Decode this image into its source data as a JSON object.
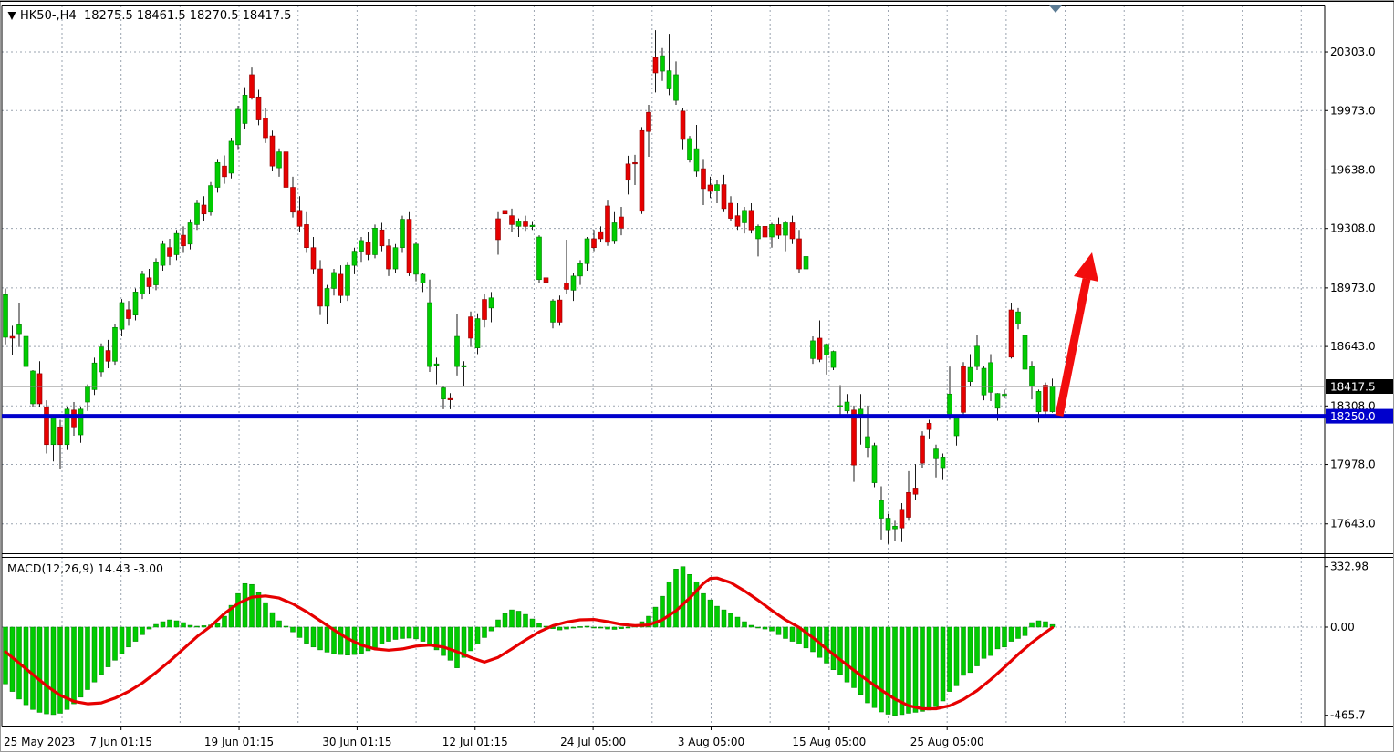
{
  "header": {
    "symbol": "HK50-",
    "timeframe": "H4",
    "text": "HK50-,H4  18275.5 18461.5 18270.5 18417.5",
    "open": "18275.5",
    "high": "18461.5",
    "low": "18270.5",
    "close": "18417.5"
  },
  "colors": {
    "bull": "#00cc00",
    "bull_border": "#007a00",
    "bear": "#e60000",
    "bear_border": "#8a0000",
    "wick": "#1a1a1a",
    "grid": "#9aa3af",
    "blue_level_line": "#0000cc",
    "current_price_line": "#808080",
    "signal_line": "#e60000",
    "arrow": "#f20d0d",
    "separator_marker": "#5b7b94",
    "axis_text": "#000000"
  },
  "price_axis": {
    "labels": [
      "20303.0",
      "19973.0",
      "19638.0",
      "19308.0",
      "18973.0",
      "18643.0",
      "18308.0",
      "17978.0",
      "17643.0"
    ],
    "label_values": [
      20303.0,
      19973.0,
      19638.0,
      19308.0,
      18973.0,
      18643.0,
      18308.0,
      17978.0,
      17643.0
    ],
    "current_price_tag": "18417.5",
    "current_price_value": 18417.5,
    "level_tag": "18250.0",
    "level_value": 18250.0
  },
  "time_axis": {
    "labels": [
      "25 May 2023",
      "7 Jun 01:15",
      "19 Jun 01:15",
      "30 Jun 01:15",
      "12 Jul 01:15",
      "24 Jul 05:00",
      "3 Aug 05:00",
      "15 Aug 05:00",
      "25 Aug 05:00"
    ]
  },
  "macd": {
    "label": "MACD(12,26,9) 14.43 -3.00",
    "params": "12,26,9",
    "value": 14.43,
    "signal_value": -3.0,
    "axis_labels": [
      "332.98",
      "0.00",
      "-465.7"
    ],
    "axis_values": [
      332.98,
      0.0,
      -465.7
    ]
  },
  "annotations": {
    "horizontal_line_price": 18250.0,
    "trend_arrow": "up"
  },
  "chart_data": {
    "type": "candlestick",
    "title": "HK50- H4 candlestick chart with MACD(12,26,9)",
    "ylim": [
      17400,
      20500
    ],
    "grid": true,
    "ohlc": [
      [
        18695,
        18970,
        18655,
        18935
      ],
      [
        18700,
        18760,
        18595,
        18690
      ],
      [
        18715,
        18890,
        18640,
        18765
      ],
      [
        18530,
        18720,
        18460,
        18700
      ],
      [
        18320,
        18510,
        18300,
        18505
      ],
      [
        18490,
        18560,
        18300,
        18320
      ],
      [
        18300,
        18340,
        18040,
        18090
      ],
      [
        18090,
        18250,
        17995,
        18245
      ],
      [
        18190,
        18230,
        17955,
        18090
      ],
      [
        18090,
        18300,
        18060,
        18290
      ],
      [
        18285,
        18330,
        18140,
        18190
      ],
      [
        18145,
        18300,
        18100,
        18290
      ],
      [
        18330,
        18430,
        18280,
        18420
      ],
      [
        18400,
        18580,
        18370,
        18550
      ],
      [
        18500,
        18660,
        18470,
        18640
      ],
      [
        18620,
        18680,
        18520,
        18560
      ],
      [
        18560,
        18770,
        18540,
        18750
      ],
      [
        18740,
        18910,
        18700,
        18890
      ],
      [
        18850,
        18900,
        18760,
        18800
      ],
      [
        18820,
        18970,
        18790,
        18950
      ],
      [
        18940,
        19070,
        18910,
        19050
      ],
      [
        19030,
        19080,
        18940,
        18980
      ],
      [
        18990,
        19140,
        18960,
        19120
      ],
      [
        19100,
        19240,
        19070,
        19220
      ],
      [
        19200,
        19250,
        19100,
        19150
      ],
      [
        19160,
        19300,
        19130,
        19280
      ],
      [
        19270,
        19320,
        19170,
        19210
      ],
      [
        19220,
        19360,
        19190,
        19340
      ],
      [
        19330,
        19470,
        19300,
        19450
      ],
      [
        19440,
        19490,
        19350,
        19390
      ],
      [
        19400,
        19570,
        19380,
        19550
      ],
      [
        19540,
        19700,
        19510,
        19680
      ],
      [
        19660,
        19720,
        19560,
        19600
      ],
      [
        19620,
        19820,
        19590,
        19800
      ],
      [
        19780,
        20000,
        19750,
        19980
      ],
      [
        19900,
        20105,
        19870,
        20060
      ],
      [
        20175,
        20215,
        20035,
        20045
      ],
      [
        20050,
        20090,
        19890,
        19920
      ],
      [
        19930,
        19990,
        19790,
        19820
      ],
      [
        19830,
        19860,
        19630,
        19660
      ],
      [
        19650,
        19760,
        19600,
        19740
      ],
      [
        19740,
        19780,
        19510,
        19540
      ],
      [
        19540,
        19600,
        19370,
        19400
      ],
      [
        19410,
        19490,
        19290,
        19320
      ],
      [
        19330,
        19400,
        19170,
        19200
      ],
      [
        19200,
        19260,
        19050,
        19080
      ],
      [
        19080,
        19130,
        18820,
        18870
      ],
      [
        18870,
        18990,
        18770,
        18970
      ],
      [
        18970,
        19080,
        18930,
        19060
      ],
      [
        19050,
        19100,
        18890,
        18930
      ],
      [
        18930,
        19120,
        18900,
        19100
      ],
      [
        19100,
        19200,
        19050,
        19180
      ],
      [
        19180,
        19260,
        19120,
        19240
      ],
      [
        19230,
        19290,
        19130,
        19160
      ],
      [
        19160,
        19330,
        19140,
        19310
      ],
      [
        19300,
        19340,
        19180,
        19210
      ],
      [
        19210,
        19250,
        19040,
        19080
      ],
      [
        19080,
        19220,
        19060,
        19200
      ],
      [
        19200,
        19380,
        19170,
        19360
      ],
      [
        19360,
        19400,
        19040,
        19060
      ],
      [
        19050,
        19230,
        19010,
        19220
      ],
      [
        19000,
        19060,
        18950,
        19050
      ],
      [
        18530,
        19020,
        18500,
        18890
      ],
      [
        18540,
        18580,
        18430,
        18545
      ],
      [
        18347,
        18420,
        18290,
        18410
      ],
      [
        18350,
        18380,
        18290,
        18345
      ],
      [
        18530,
        18825,
        18480,
        18700
      ],
      [
        18530,
        18560,
        18415,
        18535
      ],
      [
        18810,
        18840,
        18640,
        18690
      ],
      [
        18635,
        18830,
        18600,
        18800
      ],
      [
        18908,
        18940,
        18750,
        18795
      ],
      [
        18860,
        18950,
        18780,
        18917
      ],
      [
        19363,
        19400,
        19160,
        19245
      ],
      [
        19410,
        19440,
        19330,
        19390
      ],
      [
        19380,
        19420,
        19290,
        19330
      ],
      [
        19320,
        19365,
        19260,
        19350
      ],
      [
        19345,
        19380,
        19295,
        19320
      ],
      [
        19322,
        19345,
        19300,
        19326
      ],
      [
        19020,
        19270,
        19000,
        19260
      ],
      [
        19030,
        19060,
        18735,
        19005
      ],
      [
        18780,
        18910,
        18745,
        18900
      ],
      [
        18905,
        18930,
        18760,
        18780
      ],
      [
        19000,
        19245,
        18940,
        18965
      ],
      [
        18960,
        19060,
        18900,
        19040
      ],
      [
        19040,
        19130,
        18990,
        19110
      ],
      [
        19110,
        19260,
        19070,
        19250
      ],
      [
        19250,
        19300,
        19180,
        19200
      ],
      [
        19290,
        19320,
        19230,
        19250
      ],
      [
        19435,
        19470,
        19210,
        19230
      ],
      [
        19240,
        19400,
        19220,
        19340
      ],
      [
        19373,
        19430,
        19270,
        19310
      ],
      [
        19672,
        19718,
        19500,
        19580
      ],
      [
        19680,
        19723,
        19553,
        19675
      ],
      [
        19860,
        19880,
        19390,
        19405
      ],
      [
        19963,
        20005,
        19712,
        19855
      ],
      [
        20272,
        20426,
        20075,
        20185
      ],
      [
        20195,
        20325,
        20140,
        20282
      ],
      [
        20095,
        20405,
        20060,
        20197
      ],
      [
        20030,
        20250,
        20005,
        20175
      ],
      [
        19970,
        19990,
        19750,
        19810
      ],
      [
        19697,
        19830,
        19680,
        19815
      ],
      [
        19630,
        19892,
        19600,
        19758
      ],
      [
        19645,
        19700,
        19440,
        19533
      ],
      [
        19553,
        19600,
        19480,
        19517
      ],
      [
        19520,
        19580,
        19450,
        19555
      ],
      [
        19555,
        19610,
        19400,
        19420
      ],
      [
        19450,
        19490,
        19350,
        19365
      ],
      [
        19380,
        19450,
        19300,
        19320
      ],
      [
        19340,
        19430,
        19280,
        19410
      ],
      [
        19410,
        19450,
        19280,
        19300
      ],
      [
        19250,
        19330,
        19150,
        19320
      ],
      [
        19320,
        19360,
        19240,
        19260
      ],
      [
        19260,
        19340,
        19200,
        19330
      ],
      [
        19330,
        19370,
        19250,
        19270
      ],
      [
        19270,
        19350,
        19180,
        19340
      ],
      [
        19340,
        19380,
        19220,
        19250
      ],
      [
        19250,
        19300,
        19060,
        19080
      ],
      [
        19080,
        19160,
        19040,
        19150
      ],
      [
        18575,
        18700,
        18545,
        18675
      ],
      [
        18690,
        18790,
        18555,
        18570
      ],
      [
        18595,
        18660,
        18485,
        18655
      ],
      [
        18525,
        18620,
        18510,
        18615
      ],
      [
        18305,
        18425,
        18250,
        18310
      ],
      [
        18280,
        18375,
        18265,
        18330
      ],
      [
        18285,
        18310,
        17880,
        17975
      ],
      [
        18260,
        18375,
        18090,
        18290
      ],
      [
        18075,
        18310,
        18020,
        18135
      ],
      [
        17875,
        18100,
        17850,
        18085
      ],
      [
        17675,
        17855,
        17555,
        17775
      ],
      [
        17610,
        17700,
        17530,
        17675
      ],
      [
        17615,
        17660,
        17545,
        17630
      ],
      [
        17725,
        17760,
        17540,
        17620
      ],
      [
        17820,
        17940,
        17660,
        17680
      ],
      [
        17845,
        17980,
        17780,
        17810
      ],
      [
        18140,
        18165,
        17960,
        17985
      ],
      [
        18210,
        18230,
        18120,
        18175
      ],
      [
        18010,
        18090,
        17905,
        18065
      ],
      [
        17960,
        18040,
        17890,
        18020
      ],
      [
        18250,
        18530,
        18230,
        18375
      ],
      [
        18140,
        18260,
        18085,
        18250
      ],
      [
        18530,
        18555,
        18245,
        18272
      ],
      [
        18445,
        18600,
        18420,
        18525
      ],
      [
        18530,
        18705,
        18510,
        18645
      ],
      [
        18370,
        18530,
        18340,
        18520
      ],
      [
        18385,
        18600,
        18335,
        18552
      ],
      [
        18295,
        18380,
        18225,
        18378
      ],
      [
        18372,
        18400,
        18350,
        18374
      ],
      [
        18849,
        18890,
        18575,
        18583
      ],
      [
        18770,
        18860,
        18740,
        18838
      ],
      [
        18515,
        18720,
        18500,
        18705
      ],
      [
        18420,
        18560,
        18345,
        18530
      ],
      [
        18275,
        18400,
        18215,
        18390
      ],
      [
        18425,
        18440,
        18255,
        18278
      ],
      [
        18275.5,
        18461.5,
        18270.5,
        18417.5
      ]
    ],
    "macd_histogram": [
      -300,
      -340,
      -380,
      -410,
      -435,
      -450,
      -458,
      -462,
      -455,
      -435,
      -405,
      -370,
      -330,
      -290,
      -250,
      -210,
      -175,
      -140,
      -105,
      -75,
      -40,
      -10,
      15,
      30,
      40,
      35,
      25,
      10,
      5,
      8,
      12,
      20,
      60,
      120,
      185,
      240,
      235,
      190,
      135,
      80,
      35,
      5,
      -25,
      -55,
      -85,
      -105,
      -120,
      -132,
      -140,
      -145,
      -148,
      -145,
      -138,
      -125,
      -108,
      -90,
      -75,
      -65,
      -60,
      -58,
      -62,
      -75,
      -95,
      -120,
      -150,
      -175,
      -215,
      -160,
      -125,
      -90,
      -55,
      -20,
      40,
      75,
      95,
      88,
      70,
      45,
      20,
      5,
      -8,
      -15,
      -10,
      -5,
      3,
      5,
      0,
      -5,
      -10,
      -12,
      -8,
      -3,
      10,
      30,
      60,
      110,
      170,
      250,
      320,
      332.98,
      290,
      250,
      185,
      150,
      115,
      95,
      75,
      55,
      30,
      10,
      0,
      -10,
      -20,
      -40,
      -60,
      -75,
      -90,
      -110,
      -130,
      -160,
      -190,
      -225,
      -250,
      -290,
      -320,
      -355,
      -400,
      -425,
      -448,
      -460,
      -465.7,
      -462,
      -455,
      -450,
      -445,
      -438,
      -420,
      -390,
      -340,
      -310,
      -255,
      -240,
      -205,
      -165,
      -150,
      -115,
      -105,
      -75,
      -60,
      -45,
      25,
      35,
      30,
      14.43
    ],
    "macd_signal_points": [
      [
        0,
        -130
      ],
      [
        2,
        -190
      ],
      [
        4,
        -250
      ],
      [
        6,
        -310
      ],
      [
        8,
        -360
      ],
      [
        10,
        -392
      ],
      [
        12,
        -405
      ],
      [
        14,
        -400
      ],
      [
        16,
        -375
      ],
      [
        18,
        -340
      ],
      [
        20,
        -295
      ],
      [
        22,
        -240
      ],
      [
        24,
        -180
      ],
      [
        26,
        -115
      ],
      [
        28,
        -50
      ],
      [
        30,
        5
      ],
      [
        32,
        75
      ],
      [
        34,
        130
      ],
      [
        36,
        165
      ],
      [
        38,
        172
      ],
      [
        40,
        160
      ],
      [
        42,
        128
      ],
      [
        44,
        85
      ],
      [
        46,
        35
      ],
      [
        48,
        -15
      ],
      [
        50,
        -60
      ],
      [
        52,
        -95
      ],
      [
        54,
        -115
      ],
      [
        56,
        -122
      ],
      [
        58,
        -115
      ],
      [
        60,
        -100
      ],
      [
        62,
        -95
      ],
      [
        64,
        -105
      ],
      [
        66,
        -130
      ],
      [
        68,
        -160
      ],
      [
        70,
        -185
      ],
      [
        72,
        -160
      ],
      [
        74,
        -115
      ],
      [
        76,
        -68
      ],
      [
        78,
        -25
      ],
      [
        80,
        8
      ],
      [
        82,
        28
      ],
      [
        84,
        40
      ],
      [
        86,
        42
      ],
      [
        88,
        30
      ],
      [
        90,
        15
      ],
      [
        92,
        8
      ],
      [
        94,
        12
      ],
      [
        96,
        40
      ],
      [
        98,
        90
      ],
      [
        100,
        160
      ],
      [
        102,
        240
      ],
      [
        103,
        268
      ],
      [
        104,
        270
      ],
      [
        106,
        245
      ],
      [
        108,
        200
      ],
      [
        110,
        148
      ],
      [
        112,
        92
      ],
      [
        114,
        40
      ],
      [
        116,
        -2
      ],
      [
        118,
        -55
      ],
      [
        120,
        -115
      ],
      [
        122,
        -172
      ],
      [
        124,
        -228
      ],
      [
        126,
        -282
      ],
      [
        128,
        -333
      ],
      [
        130,
        -380
      ],
      [
        132,
        -415
      ],
      [
        134,
        -431
      ],
      [
        136,
        -431
      ],
      [
        138,
        -415
      ],
      [
        140,
        -382
      ],
      [
        142,
        -335
      ],
      [
        144,
        -277
      ],
      [
        146,
        -212
      ],
      [
        148,
        -144
      ],
      [
        150,
        -82
      ],
      [
        152,
        -28
      ],
      [
        153,
        -3
      ]
    ]
  }
}
